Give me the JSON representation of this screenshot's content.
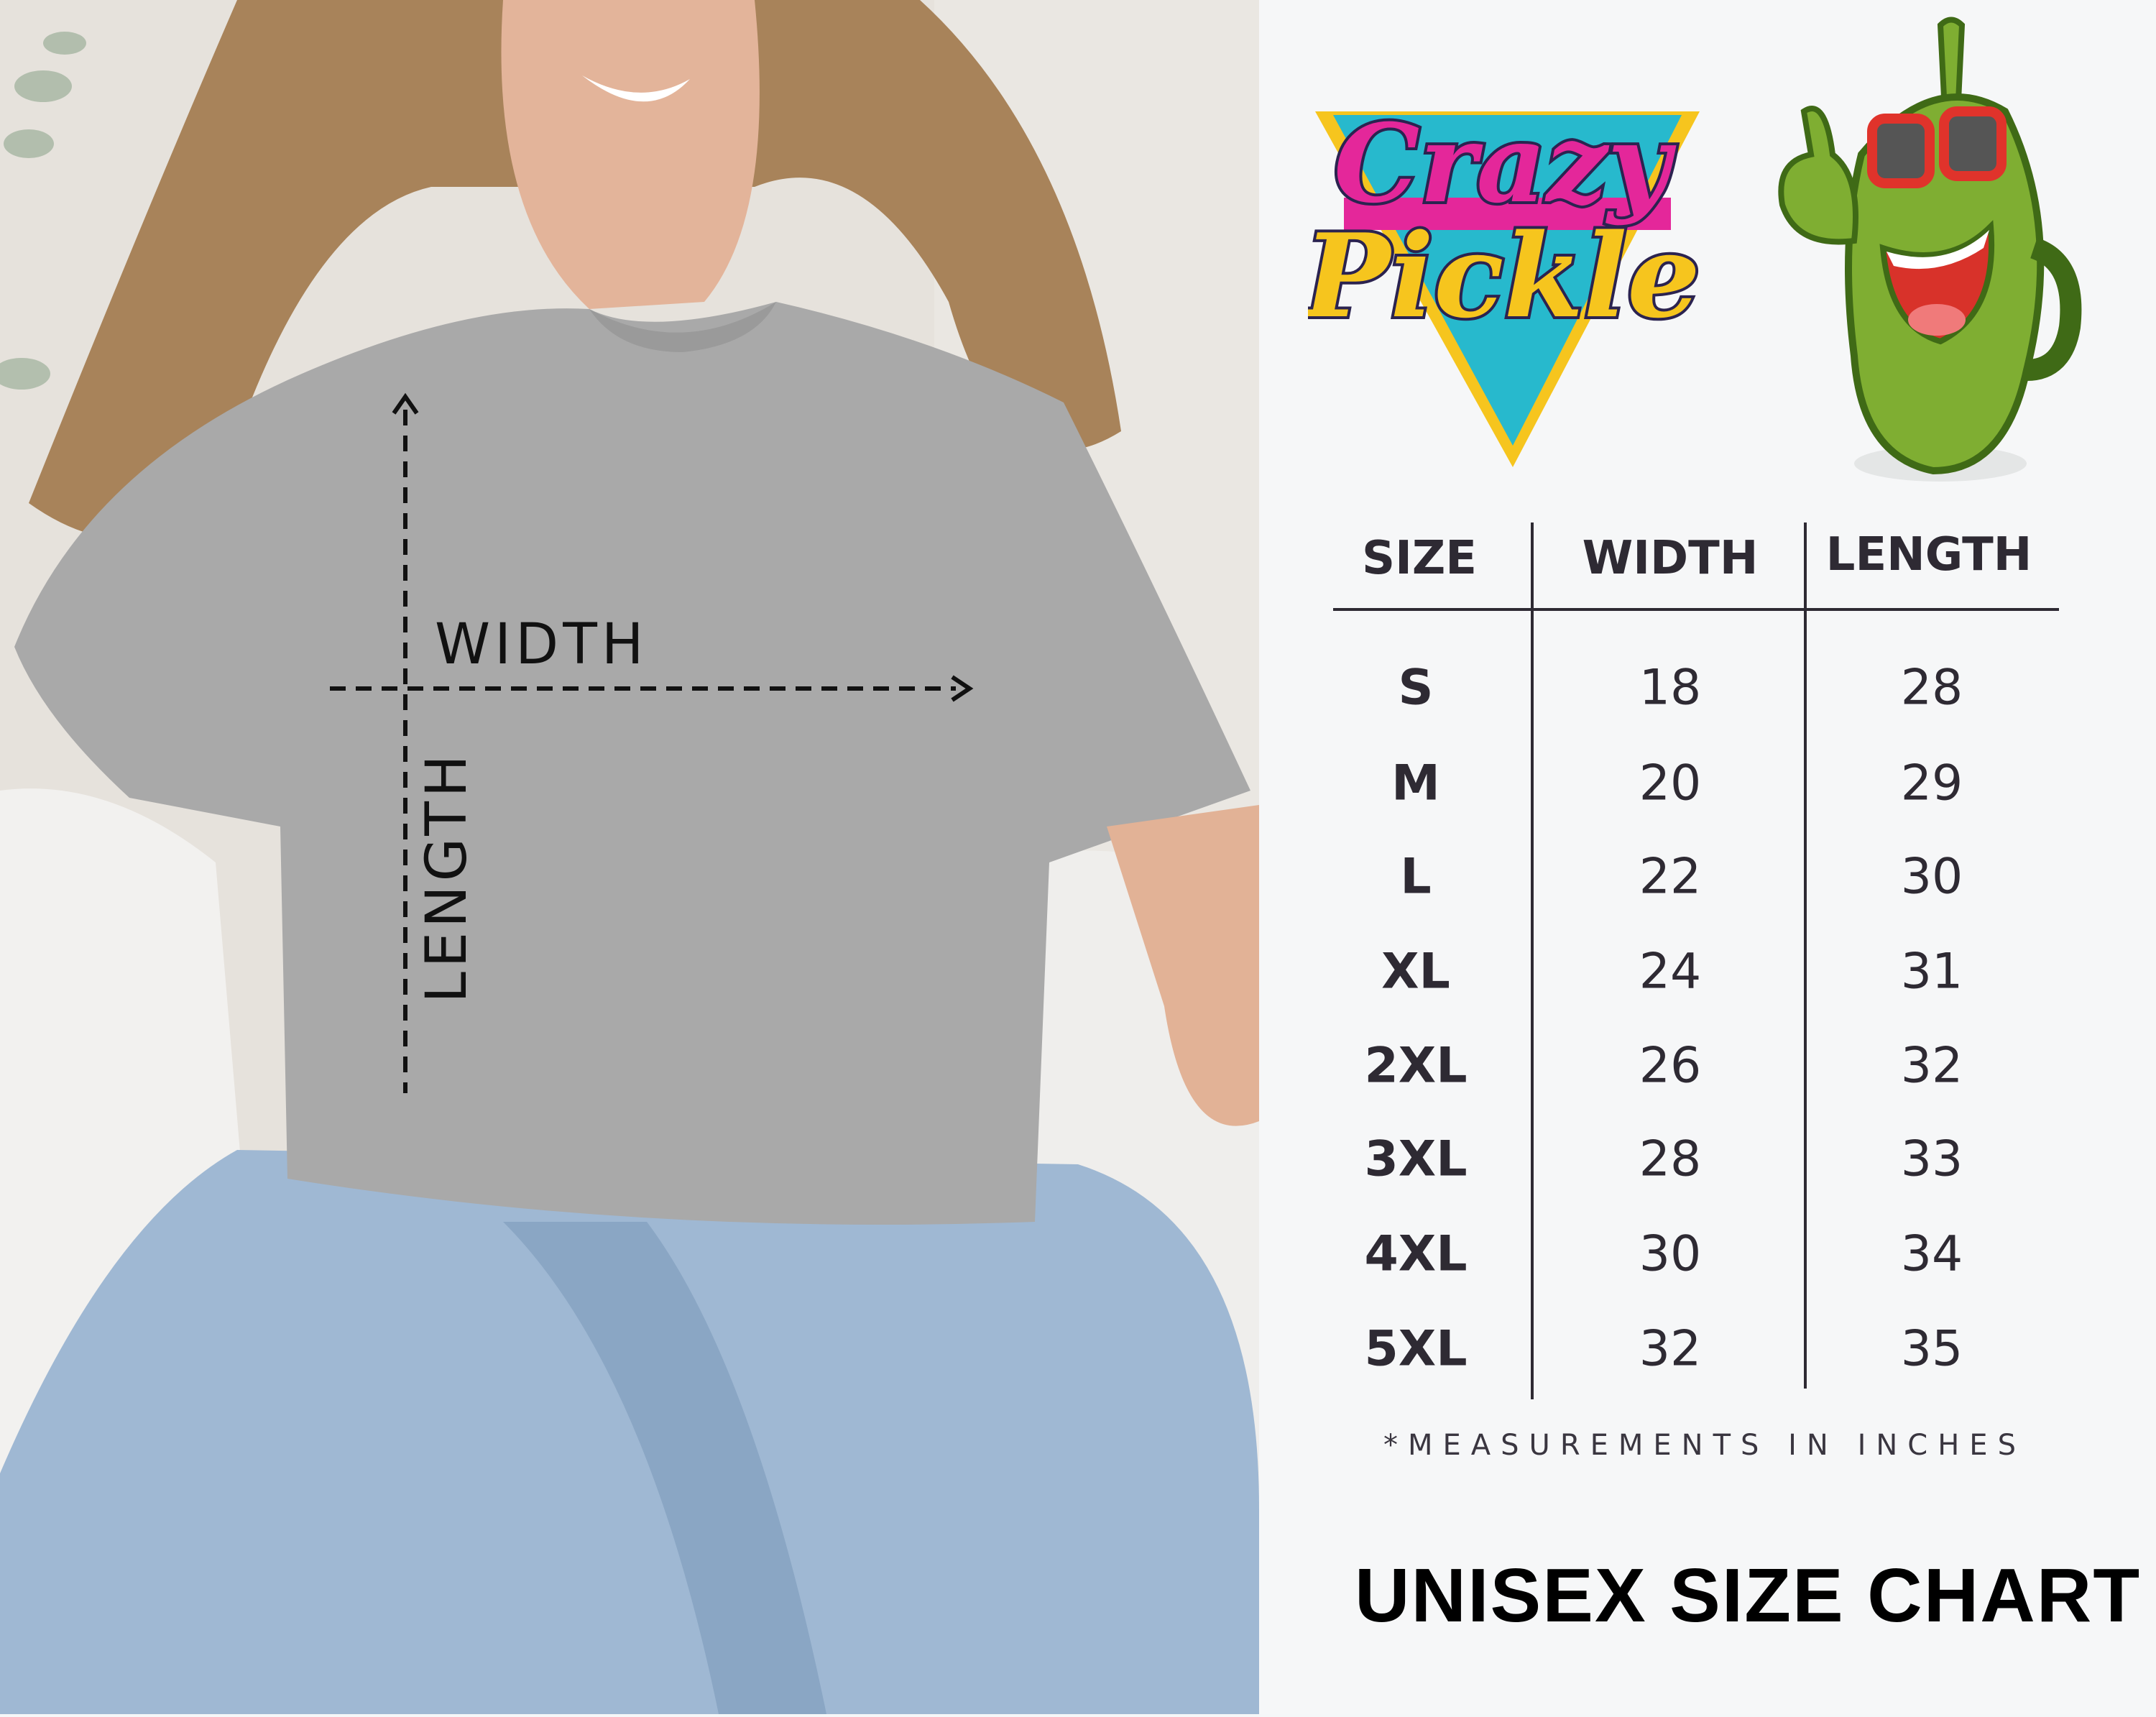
{
  "photo": {
    "width_label": "WIDTH",
    "length_label": "LENGTH"
  },
  "brand": {
    "logo_text_line1": "Crazy",
    "logo_text_line2": "Pickle",
    "colors": {
      "pink": "#e4279a",
      "yellow": "#f6c51e",
      "teal": "#27b9cd",
      "navy": "#2b2350",
      "pickle_green": "#7fae32"
    }
  },
  "table": {
    "headers": [
      "SIZE",
      "WIDTH",
      "LENGTH"
    ],
    "rows": [
      {
        "size": "S",
        "width": "18",
        "length": "28"
      },
      {
        "size": "M",
        "width": "20",
        "length": "29"
      },
      {
        "size": "L",
        "width": "22",
        "length": "30"
      },
      {
        "size": "XL",
        "width": "24",
        "length": "31"
      },
      {
        "size": "2XL",
        "width": "26",
        "length": "32"
      },
      {
        "size": "3XL",
        "width": "28",
        "length": "33"
      },
      {
        "size": "4XL",
        "width": "30",
        "length": "34"
      },
      {
        "size": "5XL",
        "width": "32",
        "length": "35"
      }
    ]
  },
  "footnote": "*MEASUREMENTS IN INCHES",
  "title": "UNISEX SIZE CHART"
}
